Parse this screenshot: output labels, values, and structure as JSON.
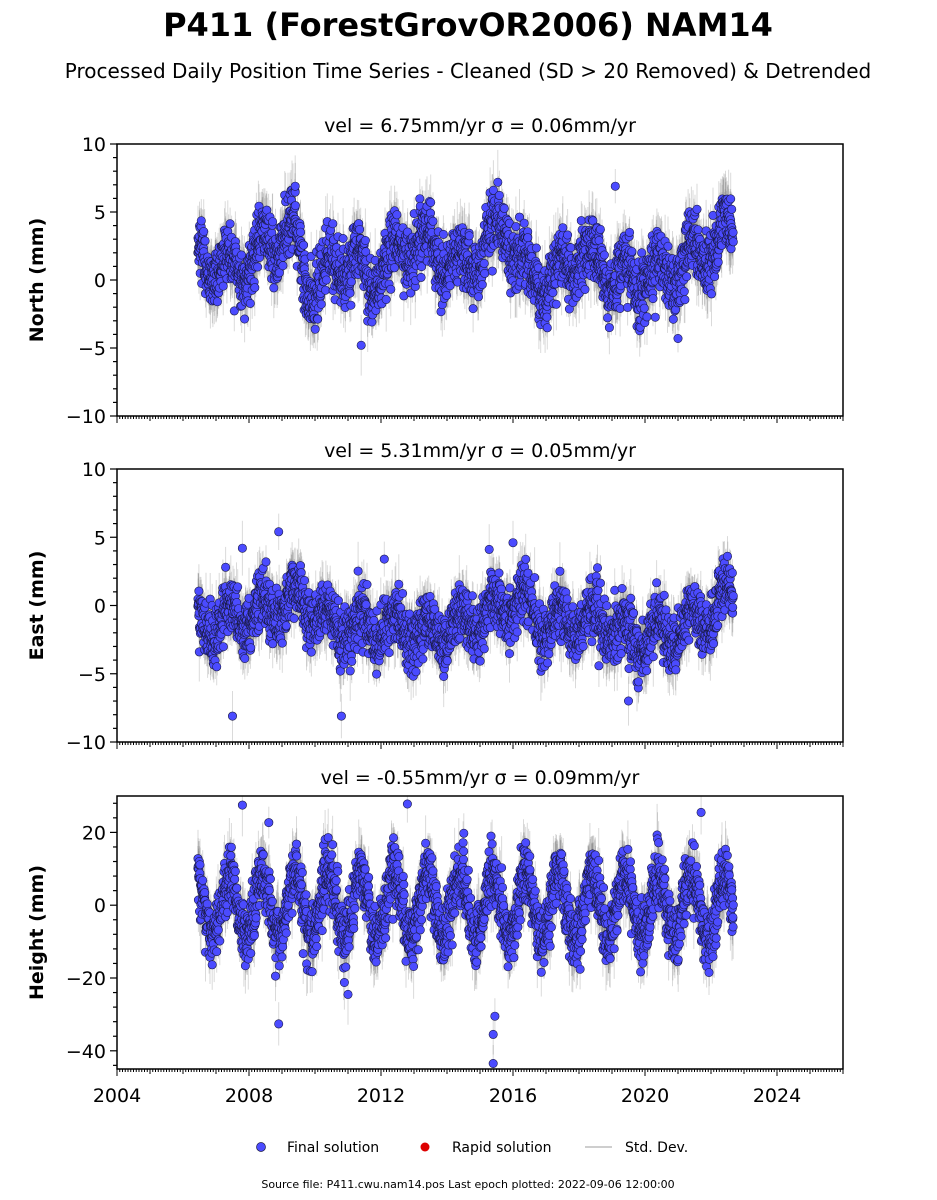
{
  "title": "P411 (ForestGrovOR2006) NAM14",
  "subtitle": "Processed Daily Position Time Series - Cleaned (SD > 20 Removed) & Detrended",
  "source_text": "Source file: P411.cwu.nam14.pos  Last epoch plotted: 2022-09-06 12:00:00",
  "colors": {
    "final": "#4b4bff",
    "rapid": "#dd0000",
    "stddev": "#bdbdbd",
    "marker_edge": "#1a1a44"
  },
  "chart_data": {
    "type": "scatter",
    "x_axis": {
      "xlim": [
        2004,
        2026
      ],
      "ticks": [
        2004,
        2008,
        2012,
        2016,
        2020,
        2024
      ],
      "tick_labels": [
        "2004",
        "2008",
        "2012",
        "2016",
        "2020",
        "2024"
      ]
    },
    "data_start": 2006.45,
    "data_end": 2022.68,
    "legend": {
      "placement": "bottom-center",
      "entries": [
        {
          "label": "Final solution",
          "marker": "circle",
          "color": "#4b4bff"
        },
        {
          "label": "Rapid solution",
          "marker": "circle",
          "color": "#dd0000"
        },
        {
          "label": "Std. Dev.",
          "marker": "line",
          "color": "#bdbdbd"
        }
      ]
    },
    "panels": [
      {
        "component": "North",
        "title": "vel = 6.75mm/yr   σ = 0.06mm/yr",
        "ylabel": "North (mm)",
        "ylim": [
          -10,
          10
        ],
        "yticks": [
          -10,
          -5,
          0,
          5,
          10
        ],
        "ytick_labels": [
          "−10",
          "−5",
          "0",
          "5",
          "10"
        ],
        "series_name": "Final solution",
        "amplitude": 1.3,
        "noise": 1.1,
        "stddev": 1.6,
        "trend_points": [
          [
            2006.45,
            1.8
          ],
          [
            2007.6,
            0.5
          ],
          [
            2009.3,
            4.0
          ],
          [
            2009.8,
            -0.5
          ],
          [
            2011.2,
            2.0
          ],
          [
            2011.6,
            -0.5
          ],
          [
            2013.0,
            3.0
          ],
          [
            2014.5,
            0.8
          ],
          [
            2015.8,
            4.0
          ],
          [
            2016.3,
            0.5
          ],
          [
            2017.0,
            -0.5
          ],
          [
            2018.0,
            2.0
          ],
          [
            2019.5,
            0.0
          ],
          [
            2021.0,
            1.0
          ],
          [
            2022.68,
            3.5
          ]
        ],
        "outliers": [
          [
            2011.4,
            -4.8
          ],
          [
            2019.1,
            6.9
          ],
          [
            2021.0,
            -4.3
          ],
          [
            2009.4,
            6.9
          ]
        ]
      },
      {
        "component": "East",
        "title": "vel = 5.31mm/yr   σ = 0.05mm/yr",
        "ylabel": "East (mm)",
        "ylim": [
          -10,
          10
        ],
        "yticks": [
          -10,
          -5,
          0,
          5,
          10
        ],
        "ytick_labels": [
          "−10",
          "−5",
          "0",
          "5",
          "10"
        ],
        "series_name": "Final solution",
        "amplitude": 1.2,
        "noise": 1.0,
        "stddev": 1.5,
        "trend_points": [
          [
            2006.45,
            -1.5
          ],
          [
            2008.5,
            -0.5
          ],
          [
            2009.5,
            0.5
          ],
          [
            2010.5,
            -1.5
          ],
          [
            2012.0,
            -1.5
          ],
          [
            2013.5,
            -2.0
          ],
          [
            2015.0,
            -1.0
          ],
          [
            2016.2,
            0.5
          ],
          [
            2017.0,
            -1.5
          ],
          [
            2018.5,
            -1.0
          ],
          [
            2019.8,
            -2.5
          ],
          [
            2021.5,
            -1.5
          ],
          [
            2022.68,
            0.8
          ]
        ],
        "outliers": [
          [
            2007.5,
            -8.1
          ],
          [
            2007.8,
            4.2
          ],
          [
            2008.9,
            5.4
          ],
          [
            2010.8,
            -8.1
          ],
          [
            2012.1,
            3.4
          ],
          [
            2016.0,
            4.6
          ],
          [
            2019.5,
            -7.0
          ]
        ]
      },
      {
        "component": "Height",
        "title": "vel = -0.55mm/yr   σ = 0.09mm/yr",
        "ylabel": "Height (mm)",
        "ylim": [
          -45,
          30
        ],
        "yticks": [
          -40,
          -20,
          0,
          20
        ],
        "ytick_labels": [
          "−40",
          "−20",
          "0",
          "20"
        ],
        "series_name": "Final solution",
        "amplitude": 9.0,
        "noise": 4.0,
        "stddev": 6.0,
        "trend_points": [
          [
            2006.45,
            0.0
          ],
          [
            2014.0,
            0.0
          ],
          [
            2022.68,
            0.0
          ]
        ],
        "outliers": [
          [
            2008.9,
            -32.6
          ],
          [
            2015.4,
            -43.5
          ],
          [
            2015.4,
            -35.5
          ],
          [
            2015.45,
            -30.5
          ],
          [
            2012.8,
            27.8
          ],
          [
            2007.8,
            27.5
          ],
          [
            2021.7,
            25.5
          ],
          [
            2008.6,
            22.7
          ],
          [
            2011.0,
            -24.5
          ]
        ]
      }
    ]
  }
}
